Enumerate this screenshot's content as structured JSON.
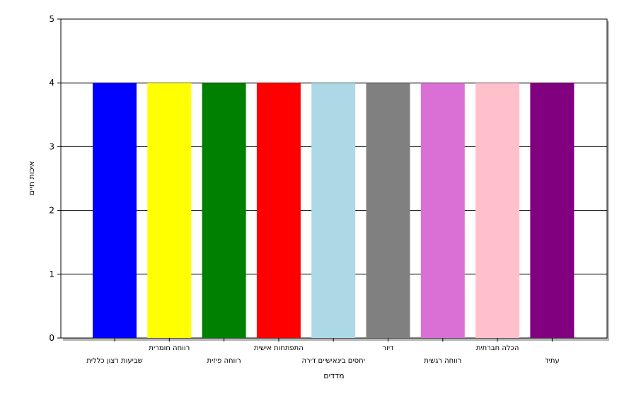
{
  "chart_data": {
    "type": "bar",
    "categories": [
      "שביעות רצון כללית",
      "רווחה חומרית",
      "רווחה פיזית",
      "התפתחות אישית",
      "יחסים בינאישיים דירה",
      "דיור",
      "רווחה רגשית",
      "הכלה חברתית",
      "עתיד"
    ],
    "values": [
      4,
      4,
      4,
      4,
      4,
      4,
      4,
      4,
      4
    ],
    "colors": [
      "#0000FF",
      "#FFFF00",
      "#008000",
      "#FF0000",
      "#ADD8E6",
      "#808080",
      "#DA70D6",
      "#FFC0CB",
      "#800080"
    ],
    "ylim": [
      0,
      5
    ],
    "yticks": [
      0,
      1,
      2,
      3,
      4,
      5
    ],
    "xlabel": "מדדים",
    "ylabel": "איכות חיים",
    "grid": true,
    "legend": "none"
  }
}
